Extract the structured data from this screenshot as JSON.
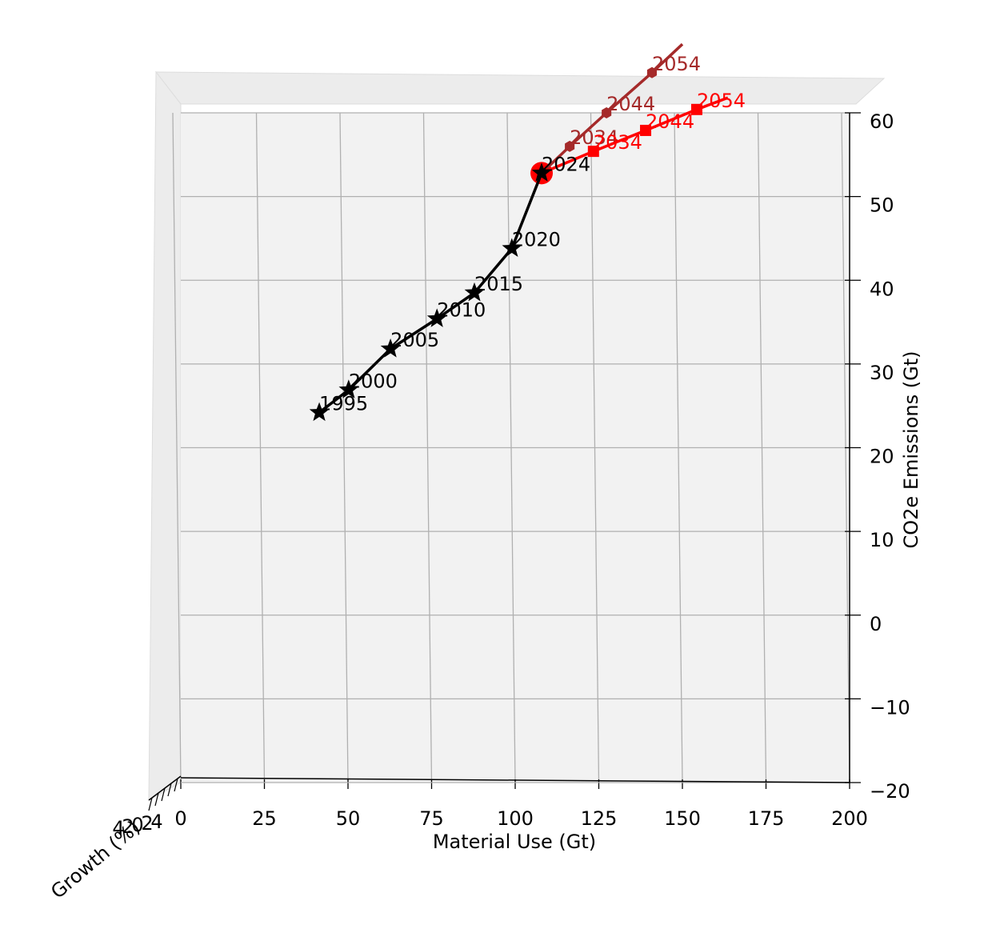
{
  "chart_data": {
    "type": "line3d",
    "xlabel": "Material Use (Gt)",
    "ylabel": "CO2e Emissions (Gt)",
    "zlabel": "Growth (%)",
    "xlim": [
      0,
      200
    ],
    "ylim": [
      -20,
      60
    ],
    "xticks": [
      0,
      25,
      50,
      75,
      100,
      125,
      150,
      175,
      200
    ],
    "yticks": [
      {
        "value": -20,
        "label": "−20"
      },
      {
        "value": -10,
        "label": "−10"
      },
      0,
      10,
      20,
      30,
      40,
      50,
      60
    ],
    "zticks": [
      4,
      2,
      0,
      2,
      4
    ],
    "grid": true,
    "series": [
      {
        "color": "#ff0000",
        "marker": "circle",
        "x": [
          107.9
        ],
        "values": [
          52.8
        ]
      },
      {
        "color": "#a52a2a",
        "marker": "hexagon",
        "x": [
          107.9,
          116.3,
          127.3,
          140.9,
          150.0
        ],
        "values": [
          52.8,
          56.0,
          60.0,
          64.8,
          68.2
        ],
        "point_labels": [
          null,
          "2034",
          "2044",
          "2054",
          null
        ]
      },
      {
        "color": "#ff0000",
        "marker": "square",
        "x": [
          107.9,
          123.4,
          139.0,
          154.3,
          163.6
        ],
        "values": [
          52.8,
          55.4,
          57.9,
          60.4,
          61.8
        ],
        "point_labels": [
          null,
          "2034",
          "2044",
          "2054",
          null
        ]
      },
      {
        "color": "#000000",
        "marker": "star",
        "x": [
          41.4,
          50.2,
          62.7,
          76.6,
          87.8,
          99.0,
          107.9
        ],
        "values": [
          24.2,
          26.9,
          31.8,
          35.4,
          38.5,
          43.8,
          52.8
        ],
        "point_labels": [
          "1995",
          "2000",
          "2005",
          "2010",
          "2015",
          "2020",
          "2024"
        ]
      }
    ]
  }
}
